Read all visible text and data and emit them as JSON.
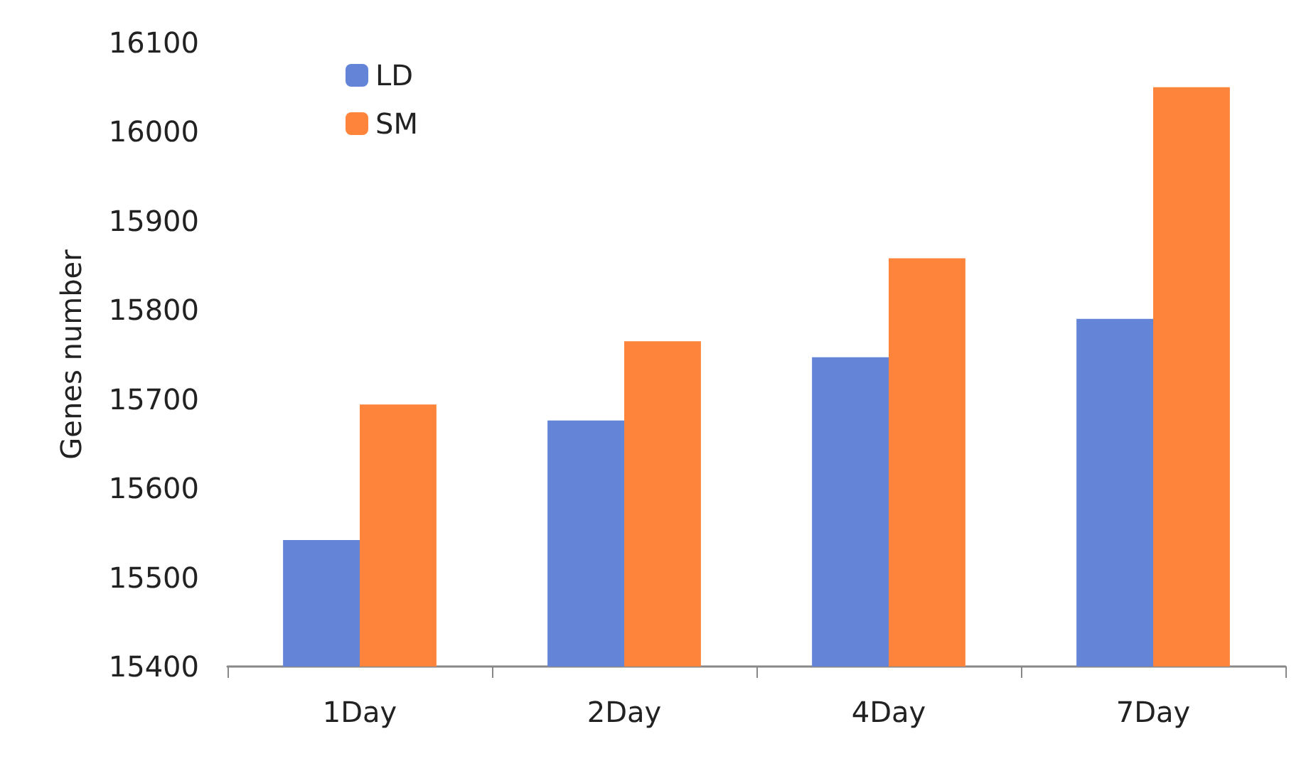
{
  "chart_data": {
    "type": "bar",
    "ylabel": "Genes number",
    "categories": [
      "1Day",
      "2Day",
      "4Day",
      "7Day"
    ],
    "series": [
      {
        "name": "LD",
        "color": "#6384d7",
        "values": [
          15542,
          15676,
          15747,
          15790
        ]
      },
      {
        "name": "SM",
        "color": "#fe843b",
        "values": [
          15694,
          15765,
          15858,
          16050
        ]
      }
    ],
    "ylim": [
      15400,
      16100
    ],
    "yticks": [
      15400,
      15500,
      15600,
      15700,
      15800,
      15900,
      16000,
      16100
    ],
    "grid": false,
    "legend": "top left"
  }
}
